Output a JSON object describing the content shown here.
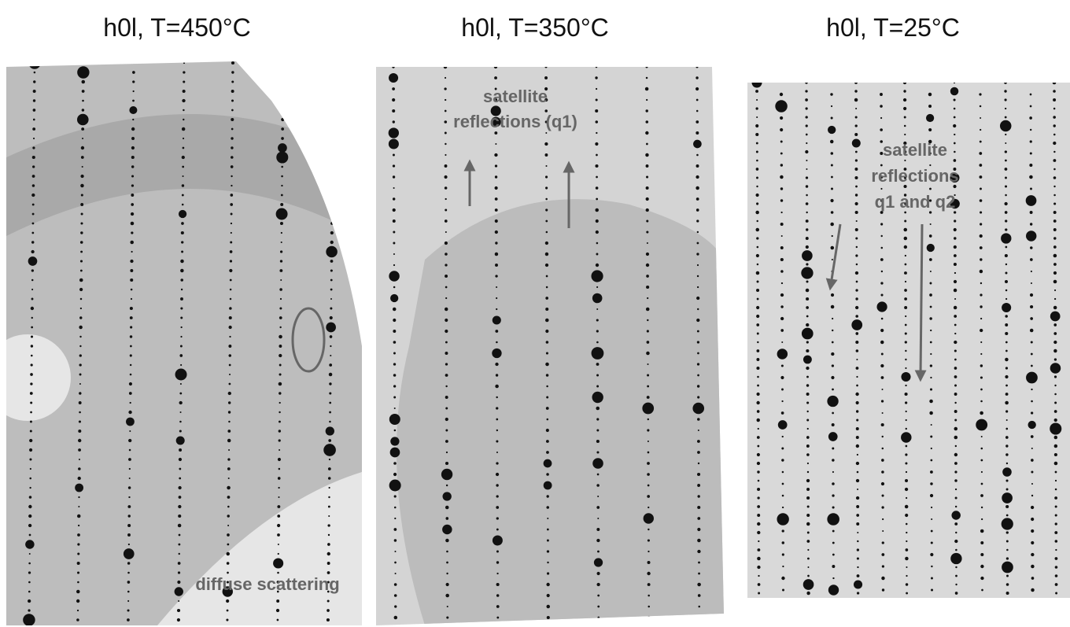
{
  "panels": [
    {
      "title": "h0l, T=450°C",
      "annotation": [
        "diffuse scattering"
      ]
    },
    {
      "title": "h0l, T=350°C",
      "annotation": [
        "satellite",
        "reflections (q1)"
      ]
    },
    {
      "title": "h0l, T=25°C",
      "annotation": [
        "satellite",
        "reflections",
        "q1 and q2"
      ]
    }
  ]
}
